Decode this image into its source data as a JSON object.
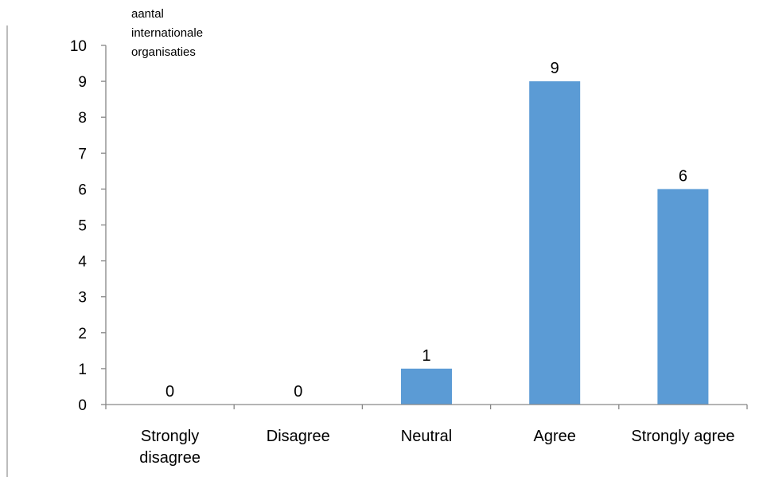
{
  "chart_data": {
    "type": "bar",
    "title": "",
    "xlabel": "",
    "ylabel_lines": [
      "aantal",
      "internationale",
      "organisaties"
    ],
    "categories": [
      [
        "Strongly",
        "disagree"
      ],
      [
        "Disagree"
      ],
      [
        "Neutral"
      ],
      [
        "Agree"
      ],
      [
        "Strongly agree"
      ]
    ],
    "values": [
      0,
      0,
      1,
      9,
      6
    ],
    "data_labels": [
      "0",
      "0",
      "1",
      "9",
      "6"
    ],
    "y_ticks": [
      "0",
      "1",
      "2",
      "3",
      "4",
      "5",
      "6",
      "7",
      "8",
      "9",
      "10"
    ],
    "ylim": [
      0,
      10
    ],
    "grid": false,
    "legend": "none",
    "bar_color": "#5b9bd5",
    "axis_color": "#868686"
  }
}
